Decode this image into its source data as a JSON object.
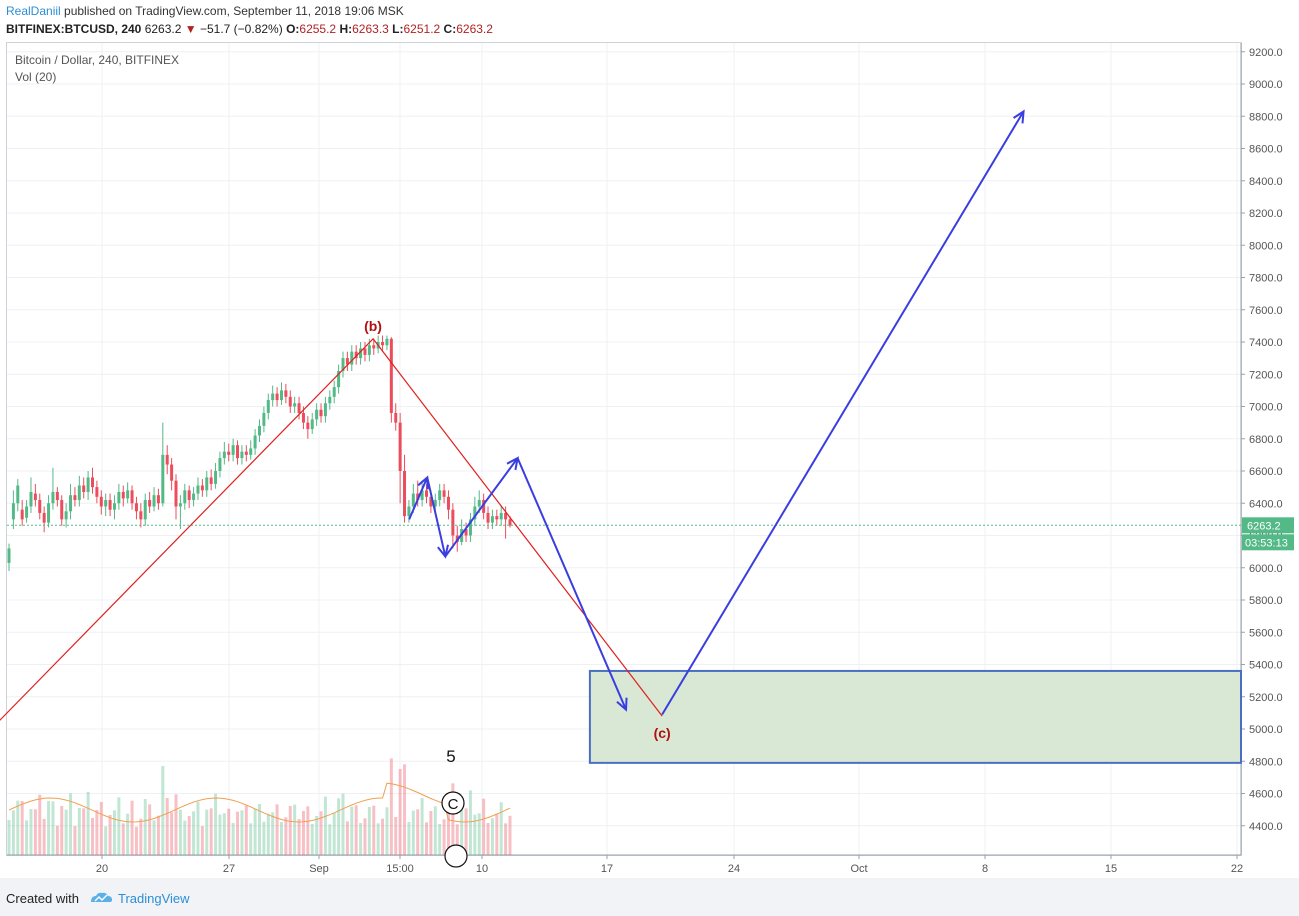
{
  "header": {
    "author": "RealDaniil",
    "published": " published on TradingView.com, September 11, 2018 19:06 MSK",
    "symbol": "BITFINEX:BTCUSD, 240",
    "last": "6263.2",
    "change": "−51.7 (−0.82%)",
    "o_label": "O:",
    "o": "6255.2",
    "h_label": "H:",
    "h": "6263.3",
    "l_label": "L:",
    "l": "6251.2",
    "c_label": "C:",
    "c": "6263.2"
  },
  "legend": {
    "title": "Bitcoin / Dollar, 240, BITFINEX",
    "vol": "Vol (20)"
  },
  "footer": {
    "created": "Created with",
    "brand": "TradingView"
  },
  "colors": {
    "up": "#53b987",
    "down": "#eb4d5c",
    "wave": "#e0201e",
    "arrows": "#3a3de0",
    "zone_fill": "#d8e8d4",
    "zone_border": "#4a6fc2",
    "price_tag": "#53b987",
    "ma": "#f0a050"
  },
  "chart_data": {
    "type": "candlestick",
    "y_ticks": [
      "9200.0",
      "9000.0",
      "8800.0",
      "8600.0",
      "8400.0",
      "8200.0",
      "8000.0",
      "7800.0",
      "7600.0",
      "7400.0",
      "7200.0",
      "7000.0",
      "6800.0",
      "6600.0",
      "6400.0",
      "6200.0",
      "6000.0",
      "5800.0",
      "5600.0",
      "5400.0",
      "5200.0",
      "5000.0",
      "4800.0",
      "4600.0",
      "4400.0"
    ],
    "ylim": [
      4200,
      9200
    ],
    "x_ticks": [
      "20",
      "27",
      "Sep",
      "15:00",
      "10",
      "17",
      "24",
      "Oct",
      "8",
      "15",
      "22"
    ],
    "last_price_label": "6263.2",
    "countdown": "03:53:13",
    "last_price": 6263.2,
    "wave_labels": {
      "b": "(b)",
      "c": "(c)"
    },
    "wave_points": [
      {
        "label": "",
        "x": "Aug 13",
        "y": 4900
      },
      {
        "label": "(b)",
        "x": "Sep 4",
        "y": 7420
      },
      {
        "label": "(c)",
        "x": "Sep 20",
        "y": 5080
      }
    ],
    "target_zone": {
      "from": "Sep 16",
      "y_low": 4790,
      "y_high": 5360
    },
    "annotations": [
      "5",
      "C"
    ],
    "projection_path": [
      {
        "x": "Sep 6",
        "y": 6300
      },
      {
        "x": "Sep 7",
        "y": 6560
      },
      {
        "x": "Sep 8",
        "y": 6070
      },
      {
        "x": "Sep 12",
        "y": 6680
      },
      {
        "x": "Sep 18",
        "y": 5120
      },
      {
        "x": "Sep 20",
        "y": 5090
      },
      {
        "x": "Oct 10",
        "y": 8830
      }
    ],
    "candles": [
      [
        6030,
        6120,
        5980,
        6150
      ],
      [
        6300,
        6400,
        6240,
        6480
      ],
      [
        6400,
        6510,
        6350,
        6550
      ],
      [
        6360,
        6300,
        6260,
        6420
      ],
      [
        6310,
        6380,
        6280,
        6420
      ],
      [
        6380,
        6470,
        6340,
        6560
      ],
      [
        6460,
        6420,
        6380,
        6520
      ],
      [
        6420,
        6340,
        6300,
        6460
      ],
      [
        6340,
        6280,
        6220,
        6380
      ],
      [
        6280,
        6400,
        6250,
        6450
      ],
      [
        6400,
        6470,
        6360,
        6620
      ],
      [
        6470,
        6420,
        6380,
        6500
      ],
      [
        6420,
        6300,
        6260,
        6450
      ],
      [
        6300,
        6350,
        6250,
        6400
      ],
      [
        6350,
        6450,
        6300,
        6520
      ],
      [
        6450,
        6420,
        6380,
        6500
      ],
      [
        6420,
        6510,
        6380,
        6570
      ],
      [
        6510,
        6470,
        6430,
        6560
      ],
      [
        6470,
        6560,
        6420,
        6600
      ],
      [
        6560,
        6500,
        6460,
        6620
      ],
      [
        6500,
        6440,
        6400,
        6540
      ],
      [
        6440,
        6380,
        6330,
        6480
      ],
      [
        6380,
        6420,
        6320,
        6460
      ],
      [
        6420,
        6360,
        6320,
        6460
      ],
      [
        6360,
        6400,
        6300,
        6450
      ],
      [
        6400,
        6470,
        6360,
        6520
      ],
      [
        6470,
        6430,
        6380,
        6510
      ],
      [
        6430,
        6480,
        6400,
        6530
      ],
      [
        6480,
        6400,
        6360,
        6510
      ],
      [
        6400,
        6350,
        6300,
        6440
      ],
      [
        6350,
        6300,
        6250,
        6400
      ],
      [
        6300,
        6420,
        6260,
        6460
      ],
      [
        6420,
        6380,
        6340,
        6470
      ],
      [
        6380,
        6450,
        6350,
        6500
      ],
      [
        6450,
        6400,
        6360,
        6490
      ],
      [
        6400,
        6700,
        6380,
        6900
      ],
      [
        6700,
        6640,
        6580,
        6760
      ],
      [
        6640,
        6540,
        6480,
        6680
      ],
      [
        6540,
        6380,
        6300,
        6580
      ],
      [
        6380,
        6400,
        6240,
        6450
      ],
      [
        6400,
        6480,
        6360,
        6520
      ],
      [
        6480,
        6420,
        6370,
        6510
      ],
      [
        6420,
        6460,
        6380,
        6500
      ],
      [
        6460,
        6510,
        6420,
        6560
      ],
      [
        6510,
        6480,
        6440,
        6550
      ],
      [
        6480,
        6560,
        6440,
        6600
      ],
      [
        6560,
        6520,
        6480,
        6610
      ],
      [
        6520,
        6600,
        6490,
        6650
      ],
      [
        6600,
        6680,
        6560,
        6720
      ],
      [
        6680,
        6720,
        6640,
        6780
      ],
      [
        6720,
        6700,
        6660,
        6770
      ],
      [
        6700,
        6760,
        6660,
        6800
      ],
      [
        6760,
        6680,
        6640,
        6790
      ],
      [
        6680,
        6720,
        6640,
        6760
      ],
      [
        6720,
        6700,
        6660,
        6760
      ],
      [
        6700,
        6740,
        6670,
        6790
      ],
      [
        6740,
        6820,
        6700,
        6860
      ],
      [
        6820,
        6880,
        6780,
        6920
      ],
      [
        6880,
        6960,
        6840,
        7000
      ],
      [
        6960,
        7040,
        6920,
        7080
      ],
      [
        7040,
        7080,
        7000,
        7130
      ],
      [
        7080,
        7040,
        7000,
        7120
      ],
      [
        7040,
        7100,
        7010,
        7150
      ],
      [
        7100,
        7060,
        7020,
        7140
      ],
      [
        7060,
        7000,
        6960,
        7100
      ],
      [
        7000,
        7020,
        6960,
        7060
      ],
      [
        7020,
        6960,
        6920,
        7060
      ],
      [
        6960,
        6900,
        6860,
        7000
      ],
      [
        6900,
        6860,
        6800,
        6940
      ],
      [
        6860,
        6920,
        6830,
        6960
      ],
      [
        6920,
        6980,
        6880,
        7020
      ],
      [
        6980,
        6940,
        6900,
        7020
      ],
      [
        6940,
        7020,
        6900,
        7060
      ],
      [
        7020,
        7060,
        6980,
        7100
      ],
      [
        7060,
        7120,
        7020,
        7160
      ],
      [
        7120,
        7220,
        7080,
        7260
      ],
      [
        7220,
        7300,
        7180,
        7340
      ],
      [
        7300,
        7260,
        7220,
        7340
      ],
      [
        7260,
        7340,
        7220,
        7380
      ],
      [
        7340,
        7300,
        7260,
        7380
      ],
      [
        7300,
        7360,
        7260,
        7400
      ],
      [
        7360,
        7320,
        7280,
        7400
      ],
      [
        7320,
        7380,
        7280,
        7420
      ],
      [
        7380,
        7360,
        7320,
        7420
      ],
      [
        7360,
        7400,
        7330,
        7440
      ],
      [
        7400,
        7380,
        7340,
        7440
      ],
      [
        7380,
        7420,
        7350,
        7440
      ],
      [
        7420,
        6960,
        6900,
        7430
      ],
      [
        6960,
        6900,
        6850,
        7020
      ],
      [
        6900,
        6600,
        6400,
        6960
      ],
      [
        6600,
        6320,
        6280,
        6700
      ],
      [
        6320,
        6380,
        6280,
        6420
      ],
      [
        6380,
        6460,
        6340,
        6520
      ],
      [
        6460,
        6420,
        6380,
        6540
      ],
      [
        6420,
        6480,
        6380,
        6540
      ],
      [
        6480,
        6440,
        6400,
        6520
      ],
      [
        6440,
        6380,
        6340,
        6480
      ],
      [
        6380,
        6420,
        6340,
        6460
      ],
      [
        6420,
        6480,
        6380,
        6520
      ],
      [
        6480,
        6440,
        6400,
        6520
      ],
      [
        6440,
        6360,
        6300,
        6480
      ],
      [
        6360,
        6200,
        6120,
        6400
      ],
      [
        6200,
        6160,
        6100,
        6260
      ],
      [
        6160,
        6240,
        6140,
        6300
      ],
      [
        6240,
        6200,
        6160,
        6280
      ],
      [
        6200,
        6300,
        6160,
        6340
      ],
      [
        6300,
        6380,
        6260,
        6440
      ],
      [
        6380,
        6420,
        6340,
        6480
      ],
      [
        6420,
        6340,
        6300,
        6460
      ],
      [
        6340,
        6280,
        6240,
        6380
      ],
      [
        6280,
        6320,
        6240,
        6360
      ],
      [
        6320,
        6300,
        6260,
        6360
      ],
      [
        6300,
        6340,
        6260,
        6380
      ],
      [
        6340,
        6300,
        6180,
        6380
      ],
      [
        6300,
        6263,
        6250,
        6320
      ]
    ]
  }
}
